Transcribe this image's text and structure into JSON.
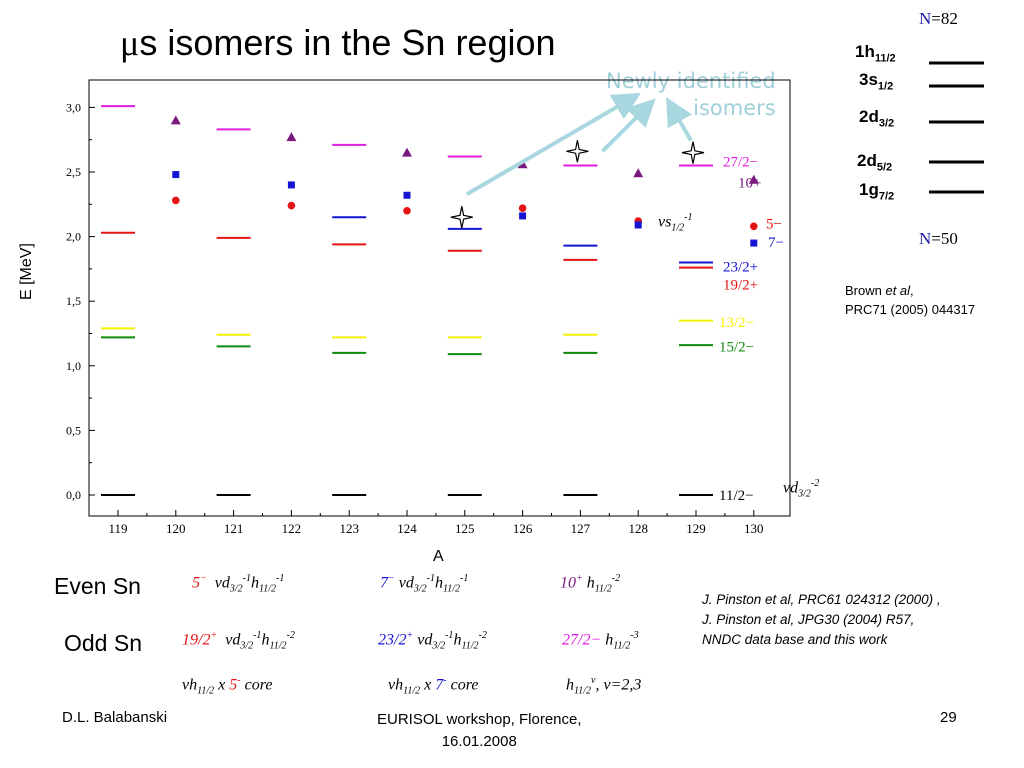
{
  "slide": {
    "title_greek": "μ",
    "title_rest": "s isomers in the Sn region",
    "newly_line1": "Newly identified",
    "newly_line2": "isomers",
    "footer_left": "D.L. Balabanski",
    "footer_center_line1": "EURISOL workshop, Florence,",
    "footer_center_line2": "16.01.2008",
    "footer_right": "29"
  },
  "shell_model": {
    "magic_top_n": "N",
    "magic_top_val": "=82",
    "magic_bottom_n": "N",
    "magic_bottom_val": "=50",
    "levels": [
      {
        "main": "1h",
        "sub": "11/2"
      },
      {
        "main": "3s",
        "sub": "1/2"
      },
      {
        "main": "2d",
        "sub": "3/2"
      },
      {
        "main": "2d",
        "sub": "5/2"
      },
      {
        "main": "1g",
        "sub": "7/2"
      }
    ],
    "ref_line1_a": "Brown ",
    "ref_line1_b": "et al",
    "ref_line1_c": ",",
    "ref_line2": "PRC71 (2005) 044317"
  },
  "legend_rows": {
    "even_label": "Even Sn",
    "odd_label": "Odd Sn",
    "even": [
      {
        "state": "5",
        "state_sup": "−",
        "nu": "ν",
        "conf": "d",
        "sub1": "3/2",
        "sup1": "-1",
        "conf2": "h",
        "sub2": "11/2",
        "sup2": "-1"
      },
      {
        "state": "7",
        "state_sup": "−",
        "nu": "ν",
        "conf": "d",
        "sub1": "3/2",
        "sup1": "-1",
        "conf2": "h",
        "sub2": "11/2",
        "sup2": "-1"
      },
      {
        "state": "10",
        "state_sup": "+",
        "conf2": "h",
        "sub2": "11/2",
        "sup2": "-2"
      }
    ],
    "odd": [
      {
        "state": "19/2",
        "state_sup": "+",
        "nu": "ν",
        "conf": "d",
        "sub1": "3/2",
        "sup1": "-1",
        "conf2": "h",
        "sub2": "11/2",
        "sup2": "-2"
      },
      {
        "state": "23/2",
        "state_sup": "+",
        "nu": "ν",
        "conf": "d",
        "sub1": "3/2",
        "sup1": "-1",
        "conf2": "h",
        "sub2": "11/2",
        "sup2": "-2"
      },
      {
        "state": "27/2−",
        "conf2": "h",
        "sub2": "11/2",
        "sup2": "-3"
      }
    ],
    "cores": [
      {
        "nu": "ν",
        "h": "h",
        "sub": "11/2",
        "x": " x ",
        "state": "5",
        "sup": "-",
        "core": " core"
      },
      {
        "nu": "ν",
        "h": "h",
        "sub": "11/2",
        "x": " x ",
        "state": "7",
        "sup": "-",
        "core": " core"
      },
      {
        "h": "h",
        "sub": "11/2",
        "sup": "ν",
        "rest": ", ν=2,3"
      }
    ]
  },
  "references": {
    "line1": "J. Pinston et al, PRC61 024312 (2000) ,",
    "line2": "J. Pinston et al, JPG30 (2004) R57,",
    "line3": "NNDC data base and this work"
  },
  "colors": {
    "black": "#000000",
    "magenta": "#e21de2",
    "red": "#e51414",
    "blue": "#1414d2",
    "yellow": "#f2f200",
    "green": "#0f8a0f",
    "purple": "#7a1a80",
    "arrow": "#a9d7df",
    "magic_blue": "#1a1aa8"
  },
  "chart_data": {
    "type": "scatter",
    "xlabel": "A",
    "ylabel": "E [MeV]",
    "ylim": [
      0,
      3.2
    ],
    "y_ticks": [
      "0,0",
      "0,5",
      "1,0",
      "1,5",
      "2,0",
      "2,5",
      "3,0"
    ],
    "y_tick_values": [
      0,
      0.5,
      1.0,
      1.5,
      2.0,
      2.5,
      3.0
    ],
    "x_ticks": [
      "119",
      "120",
      "121",
      "122",
      "123",
      "124",
      "125",
      "126",
      "127",
      "128",
      "129",
      "130"
    ],
    "x_tick_values": [
      119,
      120,
      121,
      122,
      123,
      124,
      125,
      126,
      127,
      128,
      129,
      130
    ],
    "odd_levels": [
      {
        "state": "11/2−",
        "color": "black",
        "values": [
          [
            119,
            0.0
          ],
          [
            121,
            0.0
          ],
          [
            123,
            0.0
          ],
          [
            125,
            0.0
          ],
          [
            127,
            0.0
          ],
          [
            129,
            0.0
          ]
        ]
      },
      {
        "state": "15/2−",
        "color": "green",
        "values": [
          [
            119,
            1.22
          ],
          [
            121,
            1.15
          ],
          [
            123,
            1.1
          ],
          [
            125,
            1.09
          ],
          [
            127,
            1.1
          ],
          [
            129,
            1.16
          ]
        ]
      },
      {
        "state": "13/2−",
        "color": "yellow",
        "values": [
          [
            119,
            1.29
          ],
          [
            121,
            1.24
          ],
          [
            123,
            1.22
          ],
          [
            125,
            1.22
          ],
          [
            127,
            1.24
          ],
          [
            129,
            1.35
          ]
        ]
      },
      {
        "state": "19/2+",
        "color": "red",
        "values": [
          [
            119,
            2.03
          ],
          [
            121,
            1.99
          ],
          [
            123,
            1.94
          ],
          [
            125,
            1.89
          ],
          [
            127,
            1.82
          ],
          [
            129,
            1.76
          ]
        ]
      },
      {
        "state": "23/2+",
        "color": "blue",
        "values": [
          [
            123,
            2.15
          ],
          [
            125,
            2.06
          ],
          [
            127,
            1.93
          ],
          [
            129,
            1.8
          ]
        ]
      },
      {
        "state": "27/2−",
        "color": "magenta",
        "values": [
          [
            119,
            3.01
          ],
          [
            121,
            2.83
          ],
          [
            123,
            2.71
          ],
          [
            125,
            2.62
          ],
          [
            127,
            2.55
          ],
          [
            129,
            2.55
          ]
        ]
      }
    ],
    "even_levels": [
      {
        "state": "5−",
        "marker": "circle",
        "color": "red",
        "values": [
          [
            120,
            2.28
          ],
          [
            122,
            2.24
          ],
          [
            124,
            2.2
          ],
          [
            126,
            2.22
          ],
          [
            128,
            2.12
          ],
          [
            130,
            2.08
          ]
        ]
      },
      {
        "state": "7−",
        "marker": "square",
        "color": "blue",
        "values": [
          [
            120,
            2.48
          ],
          [
            122,
            2.4
          ],
          [
            124,
            2.32
          ],
          [
            126,
            2.16
          ],
          [
            128,
            2.09
          ],
          [
            130,
            1.95
          ]
        ]
      },
      {
        "state": "10+",
        "marker": "triangle",
        "color": "purple",
        "values": [
          [
            120,
            2.9
          ],
          [
            122,
            2.77
          ],
          [
            124,
            2.65
          ],
          [
            126,
            2.56
          ],
          [
            128,
            2.49
          ],
          [
            130,
            2.44
          ]
        ]
      }
    ],
    "new_isomers": [
      [
        125,
        2.15
      ],
      [
        127,
        2.66
      ],
      [
        129,
        2.65
      ]
    ],
    "level_labels": [
      {
        "text": "27/2−",
        "color": "magenta"
      },
      {
        "text": "10+",
        "color": "purple"
      },
      {
        "text": "5−",
        "color": "red"
      },
      {
        "text": "7−",
        "color": "blue"
      },
      {
        "text": "23/2+",
        "color": "blue"
      },
      {
        "text": "19/2+",
        "color": "red"
      },
      {
        "text": "13/2−",
        "color": "yellow"
      },
      {
        "text": "15/2−",
        "color": "green"
      },
      {
        "text": "11/2−",
        "color": "black"
      }
    ],
    "annotations": [
      {
        "nu": "ν",
        "main": "s",
        "sub": "1/2",
        "sup": "-1"
      },
      {
        "nu": "ν",
        "main": "d",
        "sub": "3/2",
        "sup": "-2"
      }
    ]
  }
}
